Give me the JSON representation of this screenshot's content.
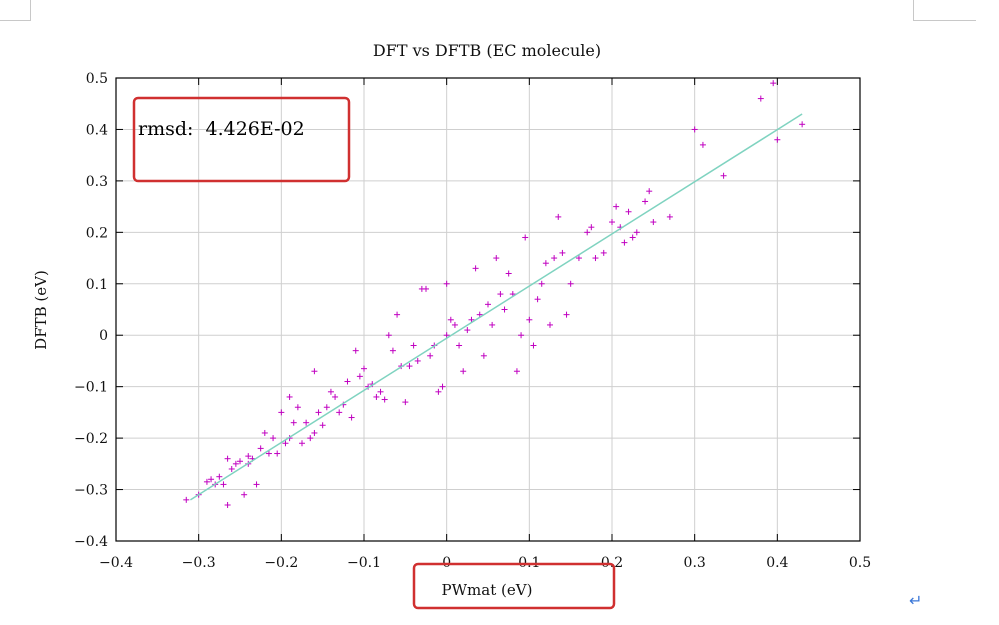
{
  "chart_data": {
    "type": "scatter",
    "title": "DFT vs DFTB (EC molecule)",
    "xlabel": "PWmat (eV)",
    "ylabel": "DFTB (eV)",
    "xlim": [
      -0.4,
      0.5
    ],
    "ylim": [
      -0.4,
      0.5
    ],
    "xticks": [
      -0.4,
      -0.3,
      -0.2,
      -0.1,
      0,
      0.1,
      0.2,
      0.3,
      0.4,
      0.5
    ],
    "yticks": [
      -0.4,
      -0.3,
      -0.2,
      -0.1,
      0,
      0.1,
      0.2,
      0.3,
      0.4,
      0.5
    ],
    "xtick_labels": [
      "−0.4",
      "−0.3",
      "−0.2",
      "−0.1",
      "0",
      "0.1",
      "0.2",
      "0.3",
      "0.4",
      "0.5"
    ],
    "ytick_labels": [
      "−0.4",
      "−0.3",
      "−0.2",
      "−0.1",
      "0",
      "0.1",
      "0.2",
      "0.3",
      "0.4",
      "0.5"
    ],
    "grid": true,
    "annotation": "rmsd:  4.426E-02",
    "fit_line": {
      "x": [
        -0.31,
        0.43
      ],
      "y": [
        -0.32,
        0.43
      ],
      "color": "#7fd3c0"
    },
    "marker_color": "#c000c0",
    "highlight_color": "#d03030",
    "series": [
      {
        "name": "data",
        "points": [
          [
            -0.315,
            -0.32
          ],
          [
            -0.3,
            -0.31
          ],
          [
            -0.29,
            -0.285
          ],
          [
            -0.285,
            -0.28
          ],
          [
            -0.28,
            -0.29
          ],
          [
            -0.275,
            -0.275
          ],
          [
            -0.27,
            -0.29
          ],
          [
            -0.265,
            -0.24
          ],
          [
            -0.265,
            -0.33
          ],
          [
            -0.26,
            -0.26
          ],
          [
            -0.255,
            -0.25
          ],
          [
            -0.25,
            -0.245
          ],
          [
            -0.245,
            -0.31
          ],
          [
            -0.24,
            -0.25
          ],
          [
            -0.24,
            -0.235
          ],
          [
            -0.235,
            -0.24
          ],
          [
            -0.23,
            -0.29
          ],
          [
            -0.225,
            -0.22
          ],
          [
            -0.22,
            -0.19
          ],
          [
            -0.215,
            -0.23
          ],
          [
            -0.21,
            -0.2
          ],
          [
            -0.205,
            -0.23
          ],
          [
            -0.2,
            -0.15
          ],
          [
            -0.195,
            -0.21
          ],
          [
            -0.19,
            -0.2
          ],
          [
            -0.19,
            -0.12
          ],
          [
            -0.185,
            -0.17
          ],
          [
            -0.18,
            -0.14
          ],
          [
            -0.175,
            -0.21
          ],
          [
            -0.17,
            -0.17
          ],
          [
            -0.165,
            -0.2
          ],
          [
            -0.16,
            -0.19
          ],
          [
            -0.16,
            -0.07
          ],
          [
            -0.155,
            -0.15
          ],
          [
            -0.15,
            -0.175
          ],
          [
            -0.145,
            -0.14
          ],
          [
            -0.14,
            -0.11
          ],
          [
            -0.135,
            -0.12
          ],
          [
            -0.13,
            -0.15
          ],
          [
            -0.125,
            -0.135
          ],
          [
            -0.12,
            -0.09
          ],
          [
            -0.115,
            -0.16
          ],
          [
            -0.11,
            -0.03
          ],
          [
            -0.105,
            -0.08
          ],
          [
            -0.1,
            -0.065
          ],
          [
            -0.095,
            -0.1
          ],
          [
            -0.09,
            -0.095
          ],
          [
            -0.085,
            -0.12
          ],
          [
            -0.08,
            -0.11
          ],
          [
            -0.075,
            -0.125
          ],
          [
            -0.07,
            0.0
          ],
          [
            -0.065,
            -0.03
          ],
          [
            -0.06,
            0.04
          ],
          [
            -0.055,
            -0.06
          ],
          [
            -0.05,
            -0.13
          ],
          [
            -0.045,
            -0.06
          ],
          [
            -0.04,
            -0.02
          ],
          [
            -0.035,
            -0.05
          ],
          [
            -0.03,
            0.09
          ],
          [
            -0.025,
            0.09
          ],
          [
            -0.02,
            -0.04
          ],
          [
            -0.015,
            -0.02
          ],
          [
            -0.01,
            -0.11
          ],
          [
            -0.005,
            -0.1
          ],
          [
            0.0,
            0.0
          ],
          [
            0.0,
            0.1
          ],
          [
            0.005,
            0.03
          ],
          [
            0.01,
            0.02
          ],
          [
            0.015,
            -0.02
          ],
          [
            0.02,
            -0.07
          ],
          [
            0.025,
            0.01
          ],
          [
            0.03,
            0.03
          ],
          [
            0.035,
            0.13
          ],
          [
            0.04,
            0.04
          ],
          [
            0.045,
            -0.04
          ],
          [
            0.05,
            0.06
          ],
          [
            0.055,
            0.02
          ],
          [
            0.06,
            0.15
          ],
          [
            0.065,
            0.08
          ],
          [
            0.07,
            0.05
          ],
          [
            0.075,
            0.12
          ],
          [
            0.08,
            0.08
          ],
          [
            0.085,
            -0.07
          ],
          [
            0.09,
            0.0
          ],
          [
            0.095,
            0.19
          ],
          [
            0.1,
            0.03
          ],
          [
            0.105,
            -0.02
          ],
          [
            0.11,
            0.07
          ],
          [
            0.115,
            0.1
          ],
          [
            0.12,
            0.14
          ],
          [
            0.125,
            0.02
          ],
          [
            0.13,
            0.15
          ],
          [
            0.135,
            0.23
          ],
          [
            0.14,
            0.16
          ],
          [
            0.145,
            0.04
          ],
          [
            0.15,
            0.1
          ],
          [
            0.16,
            0.15
          ],
          [
            0.17,
            0.2
          ],
          [
            0.175,
            0.21
          ],
          [
            0.18,
            0.15
          ],
          [
            0.19,
            0.16
          ],
          [
            0.2,
            0.22
          ],
          [
            0.205,
            0.25
          ],
          [
            0.21,
            0.21
          ],
          [
            0.215,
            0.18
          ],
          [
            0.22,
            0.24
          ],
          [
            0.225,
            0.19
          ],
          [
            0.23,
            0.2
          ],
          [
            0.24,
            0.26
          ],
          [
            0.245,
            0.28
          ],
          [
            0.25,
            0.22
          ],
          [
            0.27,
            0.23
          ],
          [
            0.3,
            0.4
          ],
          [
            0.31,
            0.37
          ],
          [
            0.335,
            0.31
          ],
          [
            0.38,
            0.46
          ],
          [
            0.395,
            0.49
          ],
          [
            0.4,
            0.38
          ],
          [
            0.43,
            0.41
          ]
        ]
      }
    ]
  }
}
